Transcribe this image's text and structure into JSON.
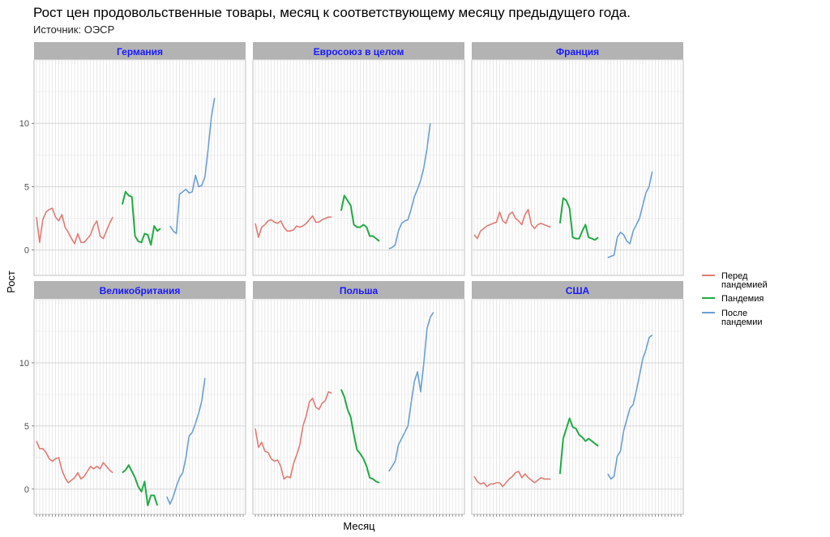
{
  "title": "Рост цен продовольственные товары, месяц к соответствующему месяцу предыдущего года.",
  "subtitle": "Источник: ОЭСР",
  "chart_data": {
    "type": "line",
    "facet": "wrap 3x2",
    "xlabel": "Месяц",
    "ylabel": "Рост",
    "ylim": [
      -2,
      15
    ],
    "y_ticks": [
      0,
      5,
      10
    ],
    "x_months": 66,
    "grid": true,
    "legend_position": "right",
    "legend": [
      {
        "key": "pre",
        "label_lines": [
          "Перед",
          "пандемией"
        ],
        "color": "#e07b73"
      },
      {
        "key": "pand",
        "label_lines": [
          "Пандемия"
        ],
        "color": "#22aa44"
      },
      {
        "key": "post",
        "label_lines": [
          "После",
          "пандемии"
        ],
        "color": "#6a9fd6"
      }
    ],
    "panels": [
      {
        "name": "Германия",
        "series": {
          "pre": [
            2.6,
            0.6,
            2.4,
            3.0,
            3.2,
            3.3,
            2.6,
            2.3,
            2.8,
            1.8,
            1.4,
            0.9,
            0.5,
            1.3,
            0.6,
            0.6,
            0.9,
            1.2,
            1.9,
            2.3,
            1.1,
            0.9,
            1.5,
            2.1,
            2.6
          ],
          "pand": [
            3.6,
            4.6,
            4.3,
            4.2,
            1.1,
            0.7,
            0.6,
            1.3,
            1.2,
            0.4,
            1.9,
            1.5,
            1.7
          ],
          "post": [
            1.9,
            1.5,
            1.3,
            4.4,
            4.6,
            4.8,
            4.5,
            4.6,
            5.9,
            5.0,
            5.1,
            5.8,
            8.0,
            10.5,
            12.0
          ]
        }
      },
      {
        "name": "Евросоюз в целом",
        "series": {
          "pre": [
            2.1,
            1.0,
            1.8,
            2.0,
            2.3,
            2.4,
            2.2,
            2.1,
            2.3,
            1.8,
            1.5,
            1.5,
            1.6,
            1.9,
            1.8,
            1.9,
            2.1,
            2.4,
            2.7,
            2.2,
            2.2,
            2.4,
            2.5,
            2.6,
            2.6
          ],
          "pand": [
            3.1,
            4.3,
            3.9,
            3.5,
            2.0,
            1.8,
            1.8,
            2.0,
            1.8,
            1.1,
            1.1,
            0.9,
            0.7
          ],
          "post": [
            0.1,
            0.2,
            0.4,
            1.5,
            2.1,
            2.3,
            2.4,
            3.2,
            4.2,
            4.8,
            5.5,
            6.5,
            8.0,
            10.0
          ]
        }
      },
      {
        "name": "Франция",
        "series": {
          "pre": [
            1.2,
            0.9,
            1.5,
            1.7,
            1.9,
            2.0,
            2.1,
            2.2,
            3.0,
            2.3,
            2.1,
            2.8,
            3.0,
            2.5,
            2.3,
            2.0,
            2.8,
            3.2,
            2.0,
            1.7,
            2.0,
            2.1,
            2.0,
            1.9,
            1.8
          ],
          "pand": [
            2.1,
            4.1,
            3.9,
            3.3,
            1.0,
            0.9,
            0.9,
            1.5,
            2.0,
            1.0,
            0.9,
            0.8,
            1.0
          ],
          "post": [
            -0.6,
            -0.5,
            -0.4,
            1.0,
            1.4,
            1.2,
            0.7,
            0.5,
            1.5,
            2.0,
            2.5,
            3.5,
            4.5,
            5.0,
            6.2
          ]
        }
      },
      {
        "name": "Великобритания",
        "series": {
          "pre": [
            3.8,
            3.2,
            3.2,
            2.9,
            2.4,
            2.2,
            2.4,
            2.5,
            1.5,
            0.9,
            0.5,
            0.7,
            0.9,
            1.3,
            0.8,
            1.0,
            1.4,
            1.8,
            1.6,
            1.8,
            1.6,
            2.1,
            1.8,
            1.5,
            1.3
          ],
          "pand": [
            1.3,
            1.5,
            1.9,
            1.4,
            0.9,
            0.2,
            -0.2,
            0.6,
            -1.3,
            -0.5,
            -0.5,
            -1.3
          ],
          "post": [
            -0.6,
            -1.2,
            -0.6,
            0.2,
            0.9,
            1.3,
            2.5,
            4.2,
            4.5,
            5.2,
            6.0,
            7.0,
            8.8
          ]
        }
      },
      {
        "name": "Польша",
        "series": {
          "pre": [
            4.8,
            3.3,
            3.7,
            3.0,
            2.9,
            2.4,
            2.2,
            2.3,
            1.8,
            0.8,
            1.0,
            0.9,
            2.0,
            2.7,
            3.5,
            5.0,
            5.8,
            6.9,
            7.2,
            6.5,
            6.3,
            6.8,
            7.0,
            7.7,
            7.6
          ],
          "pand": [
            7.9,
            7.3,
            6.3,
            5.7,
            4.3,
            3.1,
            2.8,
            2.4,
            1.8,
            0.9,
            0.8,
            0.6,
            0.5
          ],
          "post": [
            1.4,
            1.8,
            2.2,
            3.5,
            4.0,
            4.5,
            5.0,
            6.8,
            8.5,
            9.3,
            7.7,
            10.0,
            12.7,
            13.6,
            14.0
          ]
        }
      },
      {
        "name": "США",
        "series": {
          "pre": [
            1.0,
            0.6,
            0.4,
            0.5,
            0.2,
            0.4,
            0.4,
            0.5,
            0.5,
            0.2,
            0.5,
            0.8,
            1.0,
            1.3,
            1.4,
            0.9,
            1.2,
            0.9,
            0.7,
            0.5,
            0.7,
            0.9,
            0.8,
            0.8,
            0.8
          ],
          "pand": [
            1.2,
            4.0,
            4.8,
            5.6,
            4.9,
            4.8,
            4.3,
            4.1,
            3.8,
            4.0,
            3.8,
            3.6,
            3.4
          ],
          "post": [
            1.2,
            0.8,
            1.0,
            2.6,
            3.0,
            4.6,
            5.5,
            6.4,
            6.7,
            7.8,
            9.0,
            10.3,
            11.0,
            12.0,
            12.2
          ]
        }
      }
    ]
  }
}
